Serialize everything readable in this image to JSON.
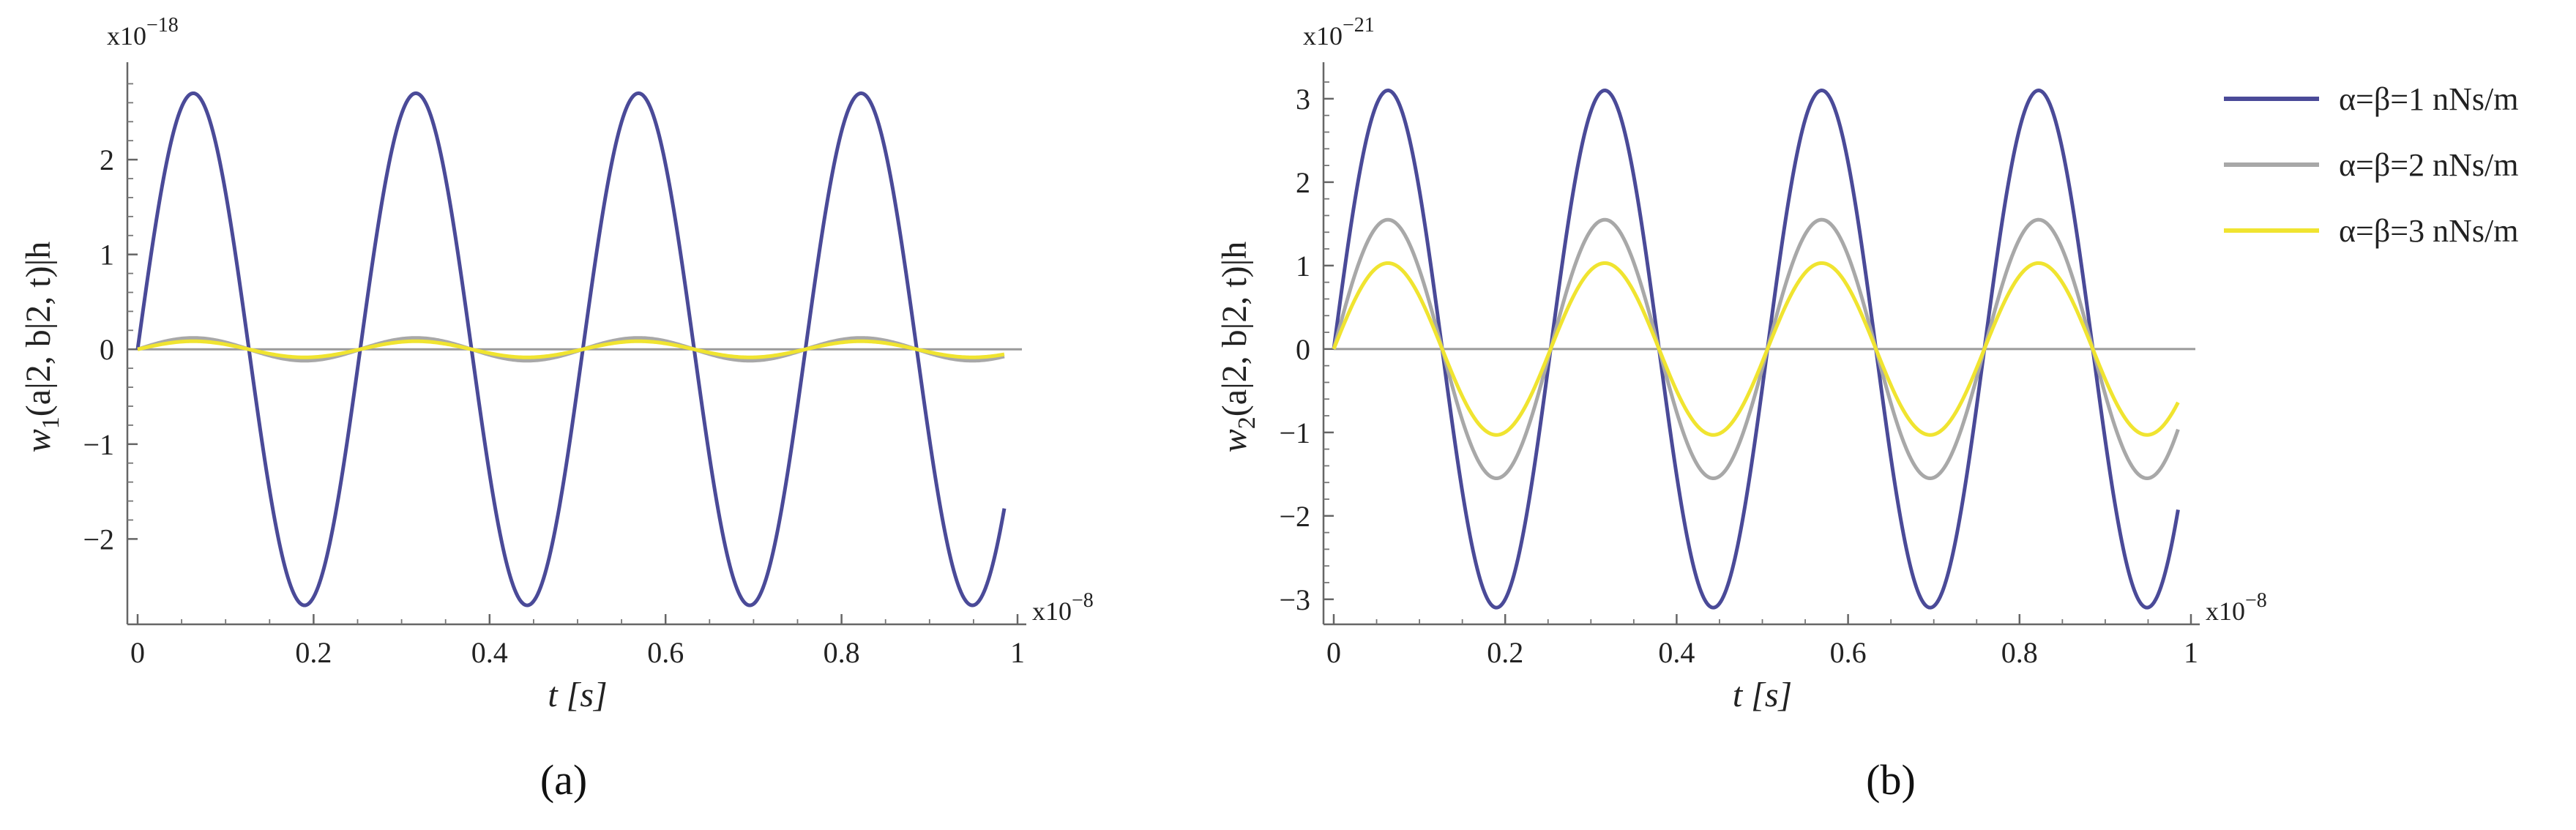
{
  "chart_data": [
    {
      "type": "line",
      "panel_label": "(a)",
      "ylabel": "w1(a|2, b|2, t)|h",
      "ylabel_main": "w",
      "ylabel_sub": "1",
      "ylabel_rest": "(a|2, b|2, t)|h",
      "xlabel": "t [s]",
      "x_multiplier": "x10",
      "x_multiplier_exp": "−8",
      "y_multiplier": "x10",
      "y_multiplier_exp": "−18",
      "xlim": [
        0,
        1
      ],
      "ylim": [
        -2.9,
        2.95
      ],
      "x_ticks": [
        "0",
        "0.2",
        "0.4",
        "0.6",
        "0.8",
        "1"
      ],
      "x_tick_values": [
        0,
        0.2,
        0.4,
        0.6,
        0.8,
        1
      ],
      "y_ticks": [
        "−2",
        "−1",
        "0",
        "1",
        "2"
      ],
      "y_tick_values": [
        -2,
        -1,
        0,
        1,
        2
      ],
      "x_range_data": [
        0,
        0.985
      ],
      "period": 0.253,
      "series": [
        {
          "color": "#4a4a98",
          "amplitude": 2.7
        },
        {
          "color": "#a8a8a8",
          "amplitude": 0.12
        },
        {
          "color": "#f0e430",
          "amplitude": 0.085
        }
      ]
    },
    {
      "type": "line",
      "panel_label": "(b)",
      "ylabel": "w2(a|2, b|2, t)|h",
      "ylabel_main": "w",
      "ylabel_sub": "2",
      "ylabel_rest": "(a|2, b|2, t)|h",
      "xlabel": "t [s]",
      "x_multiplier": "x10",
      "x_multiplier_exp": "−8",
      "y_multiplier": "x10",
      "y_multiplier_exp": "−21",
      "xlim": [
        0,
        1
      ],
      "ylim": [
        -3.3,
        3.35
      ],
      "x_ticks": [
        "0",
        "0.2",
        "0.4",
        "0.6",
        "0.8",
        "1"
      ],
      "x_tick_values": [
        0,
        0.2,
        0.4,
        0.6,
        0.8,
        1
      ],
      "y_ticks": [
        "−3",
        "−2",
        "−1",
        "0",
        "1",
        "2",
        "3"
      ],
      "y_tick_values": [
        -3,
        -2,
        -1,
        0,
        1,
        2,
        3
      ],
      "x_range_data": [
        0,
        0.985
      ],
      "period": 0.253,
      "series": [
        {
          "name": "α=β=1 nNs/m",
          "color": "#4a4a98",
          "amplitude": 3.1
        },
        {
          "name": "α=β=2 nNs/m",
          "color": "#a8a8a8",
          "amplitude": 1.55
        },
        {
          "name": "α=β=3 nNs/m",
          "color": "#f0e430",
          "amplitude": 1.03
        }
      ],
      "legend_position": "right"
    }
  ]
}
